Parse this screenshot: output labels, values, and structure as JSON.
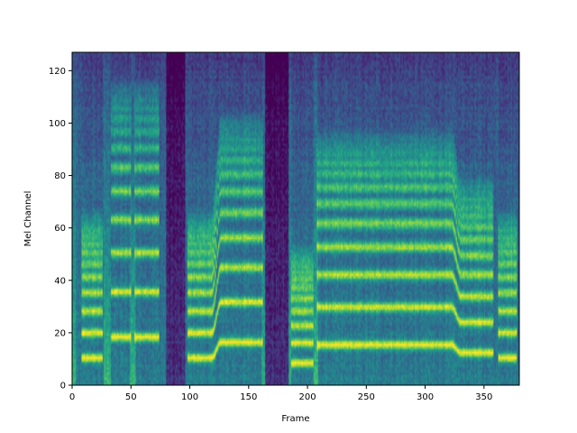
{
  "chart_data": {
    "type": "heatmap",
    "title": "",
    "xlabel": "Frame",
    "ylabel": "Mel Channel",
    "xlim": [
      0,
      380
    ],
    "ylim": [
      0,
      127
    ],
    "x_ticks": [
      0,
      50,
      100,
      150,
      200,
      250,
      300,
      350
    ],
    "y_ticks": [
      0,
      20,
      40,
      60,
      80,
      100,
      120
    ],
    "colormap": "viridis",
    "colormap_stops": [
      "#440154",
      "#472c7a",
      "#3b518b",
      "#2c718e",
      "#21908d",
      "#27ad81",
      "#5cc863",
      "#aadc32",
      "#fde725"
    ],
    "grid": false,
    "harmonic_bands_note_free": true,
    "segments": [
      {
        "start": 8,
        "end": 26,
        "f0": 10
      },
      {
        "start": 33,
        "end": 50,
        "f0": 18
      },
      {
        "start": 53,
        "end": 74,
        "f0": 18
      },
      {
        "start": 98,
        "end": 118,
        "f0": 10
      },
      {
        "start": 118,
        "end": 126,
        "f0": 10,
        "f0_end": 16
      },
      {
        "start": 126,
        "end": 162,
        "f0": 16
      },
      {
        "start": 186,
        "end": 205,
        "f0": 8
      },
      {
        "start": 208,
        "end": 255,
        "f0": 15
      },
      {
        "start": 255,
        "end": 322,
        "f0": 15
      },
      {
        "start": 322,
        "end": 330,
        "f0": 15,
        "f0_end": 12
      },
      {
        "start": 330,
        "end": 358,
        "f0": 12
      },
      {
        "start": 362,
        "end": 378,
        "f0": 10
      }
    ],
    "quiet_frames": [
      [
        80,
        96
      ],
      [
        164,
        180
      ],
      [
        174,
        184
      ]
    ]
  }
}
